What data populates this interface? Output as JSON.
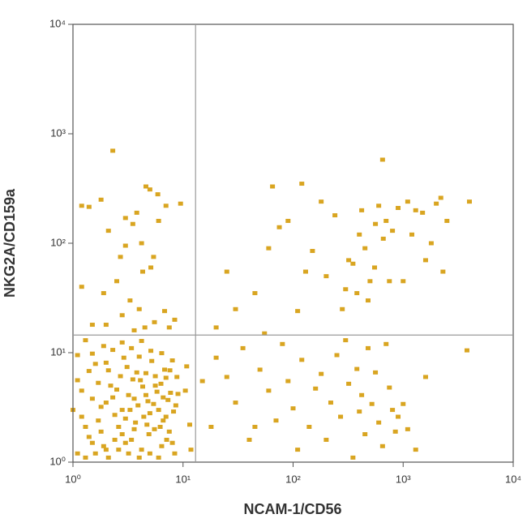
{
  "chart_data": {
    "type": "scatter",
    "x_label": "NCAM-1/CD56",
    "y_label": "NKG2A/CD159a",
    "log_x": true,
    "log_y": true,
    "xlim": [
      1,
      10000
    ],
    "ylim": [
      1,
      10000
    ],
    "xticks": [
      {
        "value": 1,
        "label": "10⁰"
      },
      {
        "value": 10,
        "label": "10¹"
      },
      {
        "value": 100,
        "label": "10²"
      },
      {
        "value": 1000,
        "label": "10³"
      },
      {
        "value": 10000,
        "label": "10⁴"
      }
    ],
    "yticks": [
      {
        "value": 1,
        "label": "10⁰"
      },
      {
        "value": 10,
        "label": "10¹"
      },
      {
        "value": 100,
        "label": "10²"
      },
      {
        "value": 1000,
        "label": "10³"
      },
      {
        "value": 10000,
        "label": "10⁴"
      }
    ],
    "quadrant_x": 13,
    "quadrant_y": 14.5,
    "color": "#d9a521",
    "x": [
      1.1,
      1.3,
      1.5,
      1.8,
      2.1,
      2.4,
      2.8,
      3.2,
      3.7,
      4.2,
      4.8,
      5.5,
      6.3,
      7.1,
      8.2,
      1.2,
      1.4,
      1.7,
      2.0,
      2.3,
      2.7,
      3.1,
      3.5,
      4.0,
      4.6,
      5.2,
      6.0,
      6.8,
      7.7,
      8.8,
      1.1,
      1.6,
      1.9,
      2.2,
      2.6,
      3.0,
      3.4,
      3.9,
      4.4,
      5.0,
      5.8,
      6.6,
      7.5,
      1.0,
      1.3,
      1.5,
      1.8,
      2.1,
      2.5,
      2.9,
      3.3,
      3.8,
      4.3,
      4.9,
      5.6,
      6.4,
      7.3,
      8.4,
      1.2,
      1.4,
      1.7,
      2.0,
      2.4,
      2.8,
      3.2,
      3.6,
      4.1,
      4.7,
      5.4,
      6.2,
      7.0,
      8.0,
      9.0,
      1.1,
      1.5,
      1.9,
      2.3,
      2.8,
      3.4,
      4.2,
      5.1,
      6.4,
      1.3,
      2.0,
      3.0,
      4.0,
      5.0,
      6.0,
      7.0,
      8.0,
      1.6,
      2.6,
      3.6,
      4.6,
      5.6,
      6.6,
      7.6,
      8.6,
      10.5,
      11.5,
      10.8,
      11.8,
      1.4,
      1.2,
      2.3,
      2.1,
      3.0,
      3.5,
      4.6,
      5.0,
      5.9,
      3.8,
      4.2,
      5.4,
      5.1,
      2.7,
      2.5,
      1.9,
      3.3,
      4.0,
      1.2,
      1.5,
      2.0,
      2.8,
      3.6,
      4.5,
      5.5,
      6.8,
      7.5,
      8.4,
      9.5,
      7.0,
      6.0,
      1.8,
      4.3,
      3.0,
      65,
      120,
      180,
      90,
      75,
      25,
      30,
      45,
      60,
      150,
      200,
      280,
      350,
      400,
      450,
      500,
      550,
      420,
      600,
      650,
      700,
      800,
      900,
      1100,
      1300,
      1500,
      2000,
      2500,
      2200,
      4000,
      1800,
      1600,
      2300,
      1200,
      320,
      380,
      480,
      560,
      660,
      750,
      1000,
      55,
      110,
      130,
      240,
      300,
      20,
      20,
      25,
      30,
      40,
      35,
      50,
      60,
      70,
      80,
      90,
      100,
      110,
      120,
      140,
      160,
      180,
      200,
      220,
      250,
      270,
      300,
      320,
      350,
      380,
      400,
      420,
      450,
      480,
      520,
      560,
      600,
      650,
      700,
      750,
      800,
      850,
      900,
      1000,
      1100,
      1300,
      1600,
      3800,
      45,
      15,
      18
    ],
    "values": [
      1.2,
      2.1,
      1.5,
      3.2,
      1.1,
      2.7,
      1.8,
      4.1,
      2.3,
      1.3,
      3.6,
      2.0,
      5.2,
      1.6,
      2.9,
      4.5,
      6.8,
      5.3,
      8.1,
      3.9,
      6.1,
      7.4,
      5.7,
      9.2,
      6.5,
      8.4,
      3.0,
      7.0,
      4.3,
      6.0,
      9.5,
      7.9,
      1.4,
      5.0,
      1.3,
      2.5,
      1.6,
      3.3,
      2.6,
      1.2,
      4.4,
      2.4,
      1.9,
      3.0,
      1.1,
      3.8,
      1.9,
      6.9,
      4.6,
      9.0,
      3.0,
      6.6,
      4.9,
      1.8,
      6.1,
      1.4,
      3.7,
      1.2,
      2.6,
      1.7,
      2.4,
      3.5,
      1.6,
      3.0,
      1.2,
      2.0,
      5.6,
      2.2,
      3.4,
      2.1,
      5.9,
      8.5,
      4.2,
      5.6,
      9.8,
      11.5,
      10.6,
      12.4,
      11.0,
      12.8,
      10.4,
      9.9,
      13.0,
      1.3,
      1.5,
      1.1,
      2.8,
      1.1,
      2.6,
      1.5,
      1.2,
      2.1,
      3.8,
      4.1,
      5.0,
      3.9,
      6.9,
      3.3,
      4.5,
      2.2,
      7.5,
      1.3,
      215,
      220,
      700,
      130,
      170,
      150,
      330,
      310,
      280,
      190,
      100,
      75,
      60,
      75,
      45,
      35,
      30,
      25,
      40,
      18,
      18,
      22,
      16,
      17,
      19,
      24,
      17,
      20,
      230,
      220,
      160,
      250,
      55,
      95,
      330,
      350,
      240,
      160,
      140,
      55,
      25,
      35,
      90,
      85,
      50,
      25,
      65,
      120,
      90,
      45,
      60,
      200,
      220,
      580,
      160,
      130,
      210,
      240,
      200,
      190,
      230,
      160,
      260,
      240,
      100,
      70,
      55,
      120,
      70,
      35,
      30,
      150,
      110,
      45,
      45,
      15,
      24,
      55,
      180,
      38,
      17,
      9,
      6,
      3.5,
      1.6,
      11,
      7,
      4.5,
      2.4,
      12,
      5.5,
      3.1,
      1.3,
      8.6,
      2.1,
      4.7,
      6.4,
      1.6,
      3.5,
      9.5,
      2.6,
      13,
      5.2,
      1.1,
      7.1,
      2.9,
      4.1,
      1.8,
      11,
      3.4,
      6.6,
      2.3,
      1.4,
      12,
      4.8,
      3.0,
      1.9,
      2.6,
      3.4,
      2.0,
      1.3,
      6.0,
      10.5,
      2.1,
      5.5,
      2.1
    ]
  }
}
